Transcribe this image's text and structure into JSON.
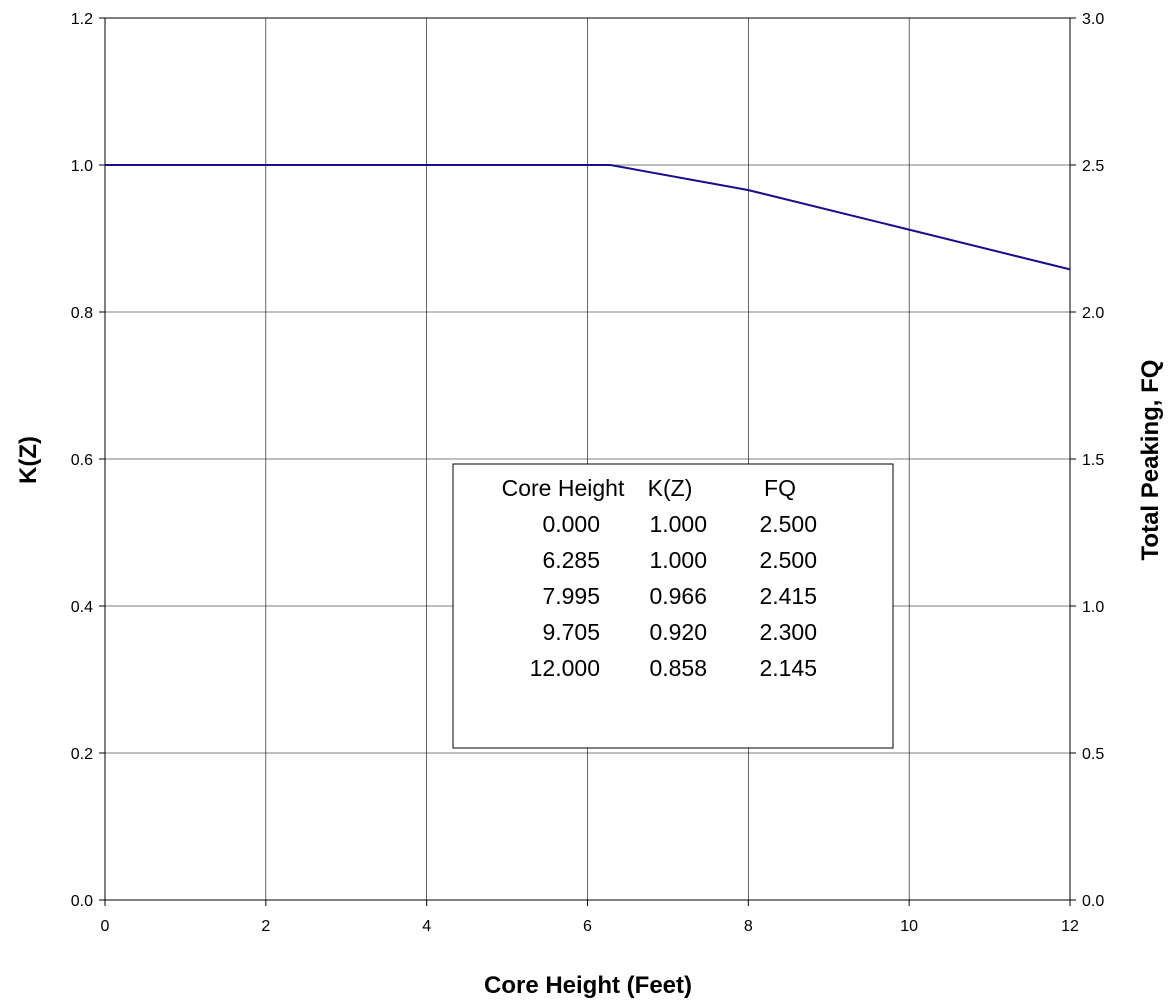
{
  "chart_data": {
    "type": "line",
    "xlabel": "Core Height (Feet)",
    "ylabel": "K(Z)",
    "y2label": "Total Peaking, FQ",
    "xlim": [
      0,
      12
    ],
    "ylim": [
      0,
      1.2
    ],
    "y2lim": [
      0,
      3.0
    ],
    "x_ticks": [
      "0",
      "2",
      "4",
      "6",
      "8",
      "10",
      "12"
    ],
    "y_ticks": [
      "0.0",
      "0.2",
      "0.4",
      "0.6",
      "0.8",
      "1.0",
      "1.2"
    ],
    "y2_ticks": [
      "0.0",
      "0.5",
      "1.0",
      "1.5",
      "2.0",
      "2.5",
      "3.0"
    ],
    "grid": true,
    "line_color": "#1a0d8c",
    "series": [
      {
        "x": [
          0.0,
          6.285,
          7.995,
          9.705,
          12.0
        ],
        "y": [
          1.0,
          1.0,
          0.966,
          0.92,
          0.858
        ]
      }
    ],
    "table": {
      "headers": [
        "Core Height",
        "K(Z)",
        "FQ"
      ],
      "rows": [
        [
          "0.000",
          "1.000",
          "2.500"
        ],
        [
          "6.285",
          "1.000",
          "2.500"
        ],
        [
          "7.995",
          "0.966",
          "2.415"
        ],
        [
          "9.705",
          "0.920",
          "2.300"
        ],
        [
          "12.000",
          "0.858",
          "2.145"
        ]
      ]
    }
  }
}
